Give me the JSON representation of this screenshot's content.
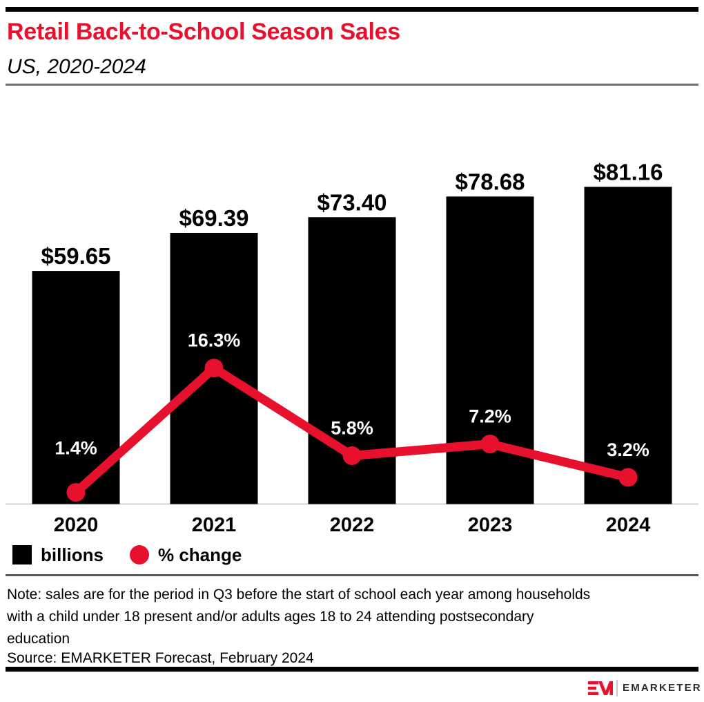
{
  "theme": {
    "accent": "#e8112d"
  },
  "header": {
    "title": "Retail Back-to-School Season Sales",
    "subtitle": "US, 2020-2024"
  },
  "chart_data": {
    "type": "bar",
    "title": "Retail Back-to-School Season Sales",
    "subtitle": "US, 2020-2024",
    "categories": [
      "2020",
      "2021",
      "2022",
      "2023",
      "2024"
    ],
    "series": [
      {
        "name": "billions",
        "type": "bar",
        "color": "#000000",
        "values": [
          59.65,
          69.39,
          73.4,
          78.68,
          81.16
        ],
        "labels": [
          "$59.65",
          "$69.39",
          "$73.40",
          "$78.68",
          "$81.16"
        ],
        "label_color": "#000000"
      },
      {
        "name": "% change",
        "type": "line",
        "color": "#e8112d",
        "values": [
          1.4,
          16.3,
          5.8,
          7.2,
          3.2
        ],
        "labels": [
          "1.4%",
          "16.3%",
          "5.8%",
          "7.2%",
          "3.2%"
        ],
        "label_color": "#ffffff"
      }
    ],
    "ylim_bar": [
      0,
      86
    ],
    "ylim_pct": [
      0,
      41
    ],
    "grid": false,
    "legend_position": "bottom-left",
    "x_axis_line_color": "#ccd5e2"
  },
  "legend": {
    "items": [
      {
        "label": "billions",
        "swatch": "square",
        "color": "#000000"
      },
      {
        "label": "% change",
        "swatch": "circle",
        "color": "#e8112d"
      }
    ]
  },
  "note": {
    "lines": [
      "Note: sales are for the period in Q3 before the start of school each year among households",
      "with a child under 18 present and/or adults ages 18 to 24 attending postsecondary",
      "education"
    ]
  },
  "source": "Source: EMARKETER Forecast, February 2024",
  "footer": {
    "brand": "EMARKETER"
  }
}
